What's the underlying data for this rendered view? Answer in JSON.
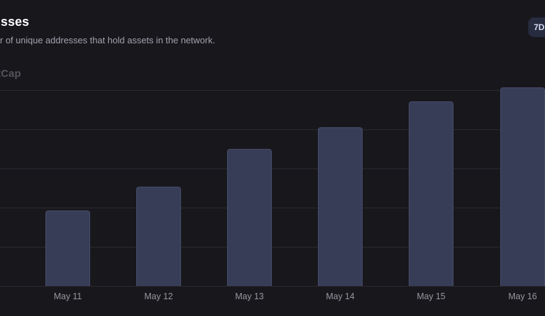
{
  "header": {
    "title_fragment": "sses",
    "subtitle_fragment": "r of unique addresses that hold assets in the network.",
    "timeframe_button": "7D"
  },
  "watermark": "tCap",
  "chart_data": {
    "type": "bar",
    "title": "",
    "xlabel": "",
    "ylabel": "",
    "categories": [
      "May 11",
      "May 12",
      "May 13",
      "May 14",
      "May 15",
      "May 16"
    ],
    "values": [
      38,
      50,
      69,
      80,
      93,
      100
    ],
    "ylim": [
      0,
      100
    ],
    "units": "relative height (y-axis labels not visible in screenshot)",
    "grid": "horizontal gridlines on",
    "legend": "none"
  },
  "colors": {
    "background": "#18171c",
    "title": "#ffffff",
    "subtitle": "#a2a2ac",
    "axis_label": "#97979f",
    "watermark": "#53535b",
    "bar": "#383d57",
    "bar_border": "#474c6b",
    "gridline": "#2a2a31",
    "button_bg": "#272c40",
    "button_text": "#d7dcf5"
  }
}
